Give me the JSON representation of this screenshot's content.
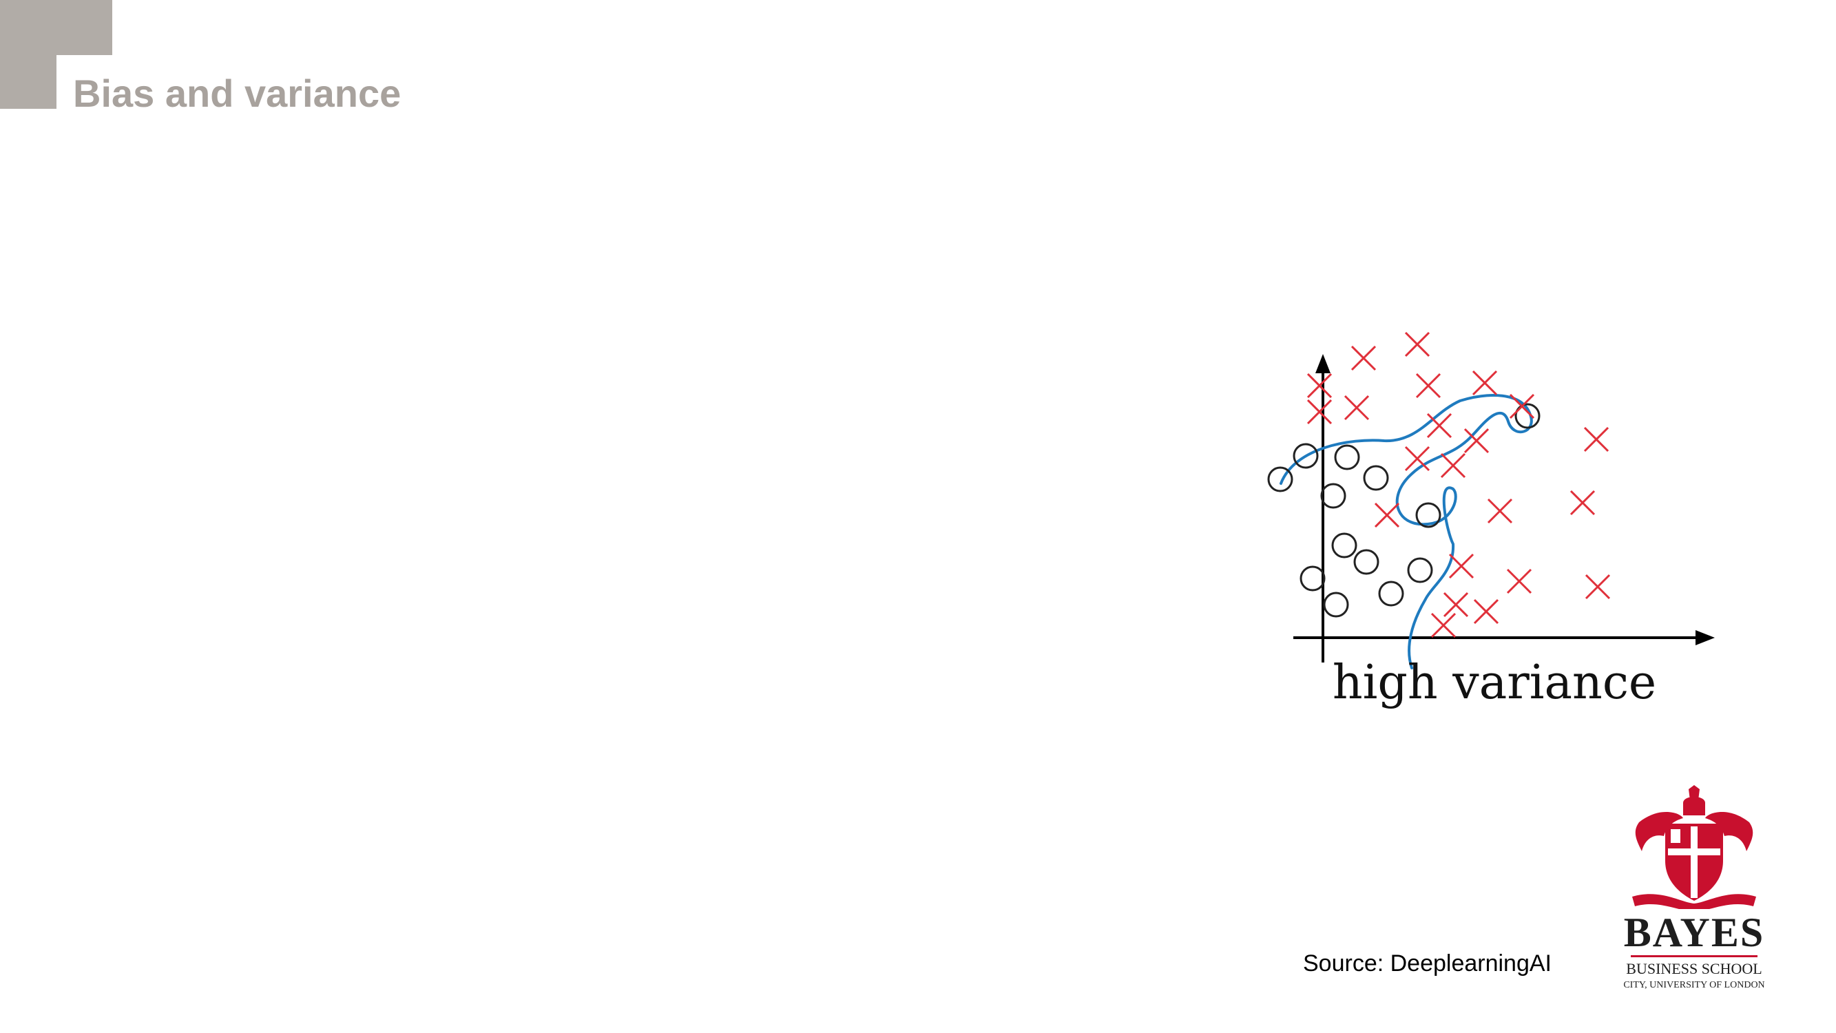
{
  "slide": {
    "title": "Bias and variance",
    "source": "Source: DeeplearningAI"
  },
  "figure": {
    "caption": "high variance",
    "colors": {
      "axes": "#000000",
      "circles": "#222222",
      "crosses": "#e0303a",
      "boundary": "#1f7bbf"
    }
  },
  "logo": {
    "name": "BAYES",
    "line1": "BUSINESS SCHOOL",
    "line2": "CITY, UNIVERSITY OF LONDON",
    "color": "#c8102e",
    "icon": "crest-icon"
  },
  "colors": {
    "title": "#a8a29d",
    "corner_block": "#b1aca7"
  }
}
